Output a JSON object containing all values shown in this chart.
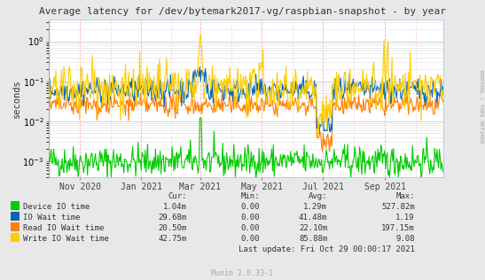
{
  "title": "Average latency for /dev/bytemark2017-vg/raspbian-snapshot - by year",
  "ylabel": "seconds",
  "right_label": "RRDTOOL / TOBI OETIKER",
  "background_color": "#e8e8e8",
  "plot_bg_color": "#ffffff",
  "xmin": 1601510400,
  "xmax": 1635465600,
  "xticks": [
    1604188800,
    1609459200,
    1614556800,
    1619827200,
    1625097600,
    1630454400
  ],
  "xtick_labels": [
    "Nov 2020",
    "Jan 2021",
    "Mar 2021",
    "May 2021",
    "Jul 2021",
    "Sep 2021"
  ],
  "lines": [
    {
      "label": "Device IO time",
      "color": "#00cc00"
    },
    {
      "label": "IO Wait time",
      "color": "#0066b3"
    },
    {
      "label": "Read IO Wait time",
      "color": "#ff8000"
    },
    {
      "label": "Write IO Wait time",
      "color": "#ffcc00"
    }
  ],
  "legend_headers": [
    "Cur:",
    "Min:",
    "Avg:",
    "Max:"
  ],
  "legend_data": [
    [
      "1.04m",
      "0.00",
      "1.29m",
      "527.82m"
    ],
    [
      "29.68m",
      "0.00",
      "41.48m",
      "1.19"
    ],
    [
      "20.50m",
      "0.00",
      "22.10m",
      "197.15m"
    ],
    [
      "42.75m",
      "0.00",
      "85.88m",
      "9.08"
    ]
  ],
  "last_update": "Last update: Fri Oct 29 00:00:17 2021",
  "munin_version": "Munin 2.0.33-1",
  "seed": 42
}
